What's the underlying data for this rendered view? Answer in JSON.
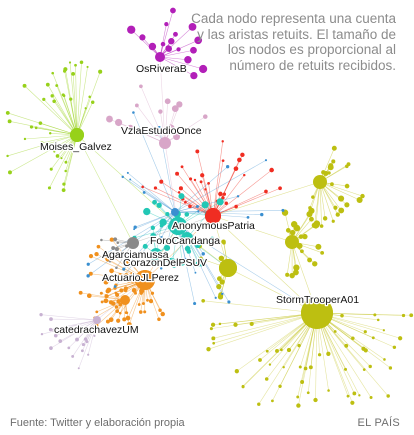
{
  "caption": "Cada nodo representa una cuenta y las aristas retuits. El tamaño de los nodos es proporcional al número de retuits recibidos.",
  "footer": {
    "source": "Fuente: Twitter y elaboración propia",
    "publisher": "EL PAÍS"
  },
  "colors": {
    "purple": "#b21fb8",
    "pink": "#d8a6c8",
    "blue": "#3a8fd0",
    "lightgreen": "#97d11a",
    "olive": "#bdbf11",
    "orange": "#f0901d",
    "red": "#f02d22",
    "teal": "#22c7b5",
    "gray": "#8a8a8a",
    "lilac": "#c8b2d2"
  },
  "labels": [
    {
      "id": "osrivera",
      "text": "OsRiveraB"
    },
    {
      "id": "vzla",
      "text": "VzlaEstudioOnce"
    },
    {
      "id": "moises",
      "text": "Moises_Galvez"
    },
    {
      "id": "anonymous",
      "text": "AnonymousPatria"
    },
    {
      "id": "forocandanga",
      "text": "ForoCandanga"
    },
    {
      "id": "agarcia",
      "text": "Agarciamussa"
    },
    {
      "id": "corazon",
      "text": "CorazonDelPSUV"
    },
    {
      "id": "actuario",
      "text": "ActuarioJLPerez"
    },
    {
      "id": "stormtrooper",
      "text": "StormTrooperA01"
    },
    {
      "id": "catedra",
      "text": "catedrachavezUM"
    }
  ]
}
